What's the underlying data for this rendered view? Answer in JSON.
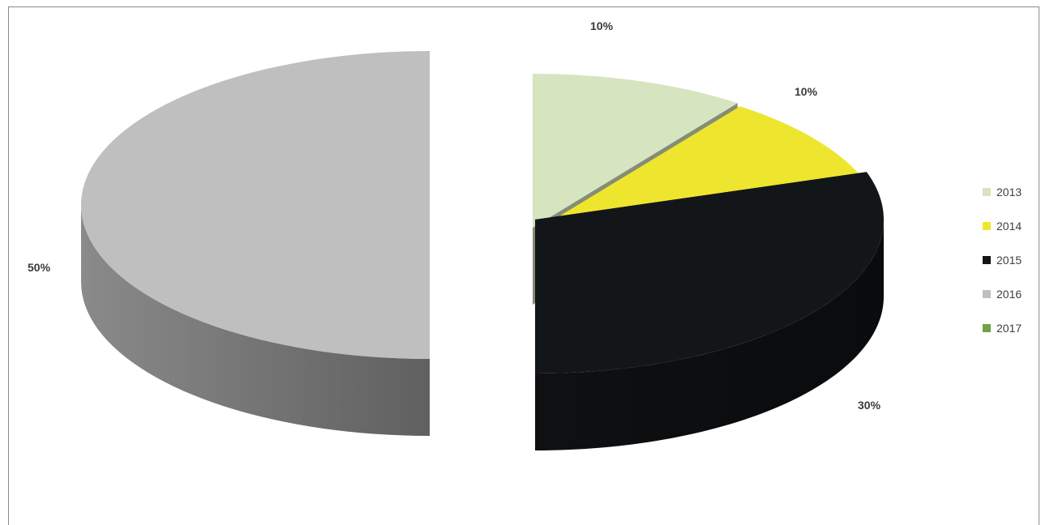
{
  "chart_data": {
    "type": "pie",
    "title": "",
    "series": [
      {
        "values": [
          10,
          10,
          30,
          50,
          0
        ]
      }
    ],
    "categories": [
      "2013",
      "2014",
      "2015",
      "2016",
      "2017"
    ],
    "slices": [
      {
        "label": "2013",
        "value": 10,
        "data_label": "10%",
        "color": "#d6e4bf"
      },
      {
        "label": "2014",
        "value": 10,
        "data_label": "10%",
        "color": "#eee62e"
      },
      {
        "label": "2015",
        "value": 30,
        "data_label": "30%",
        "color": "#131619"
      },
      {
        "label": "2016",
        "value": 50,
        "data_label": "50%",
        "color": "#bfbfbf"
      },
      {
        "label": "2017",
        "value": 0,
        "data_label": "",
        "color": "#71a246"
      }
    ],
    "legend_position": "right",
    "style": "3d-exploded"
  }
}
